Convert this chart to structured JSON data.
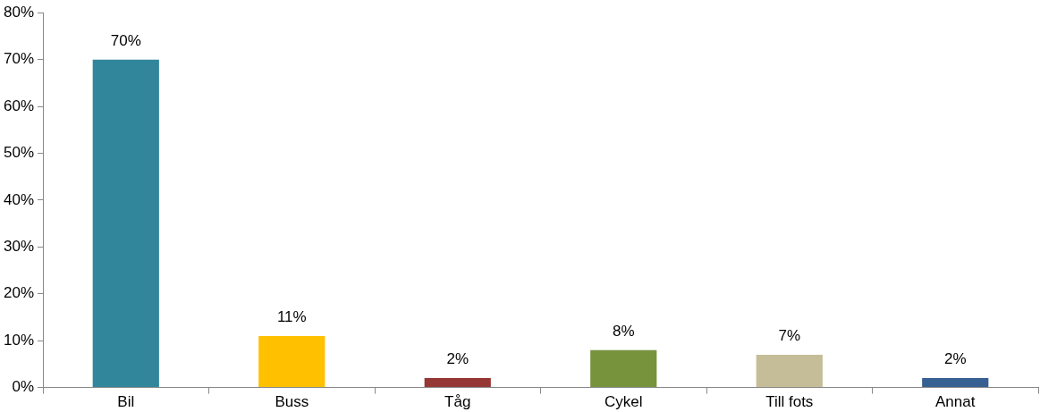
{
  "chart_data": {
    "type": "bar",
    "categories": [
      "Bil",
      "Buss",
      "Tåg",
      "Cykel",
      "Till fots",
      "Annat"
    ],
    "values": [
      70,
      11,
      2,
      8,
      7,
      2
    ],
    "colors": [
      "#31869b",
      "#ffc000",
      "#953735",
      "#77933c",
      "#c4bd97",
      "#376092"
    ],
    "value_labels": [
      "70%",
      "11%",
      "2%",
      "8%",
      "7%",
      "2%"
    ],
    "ylim": [
      0,
      80
    ],
    "yticks": [
      {
        "value": 0,
        "label": "0%"
      },
      {
        "value": 10,
        "label": "10%"
      },
      {
        "value": 20,
        "label": "20%"
      },
      {
        "value": 30,
        "label": "30%"
      },
      {
        "value": 40,
        "label": "40%"
      },
      {
        "value": 50,
        "label": "50%"
      },
      {
        "value": 60,
        "label": "60%"
      },
      {
        "value": 70,
        "label": "70%"
      },
      {
        "value": 80,
        "label": "80%"
      }
    ],
    "grid": false,
    "legend": false
  }
}
